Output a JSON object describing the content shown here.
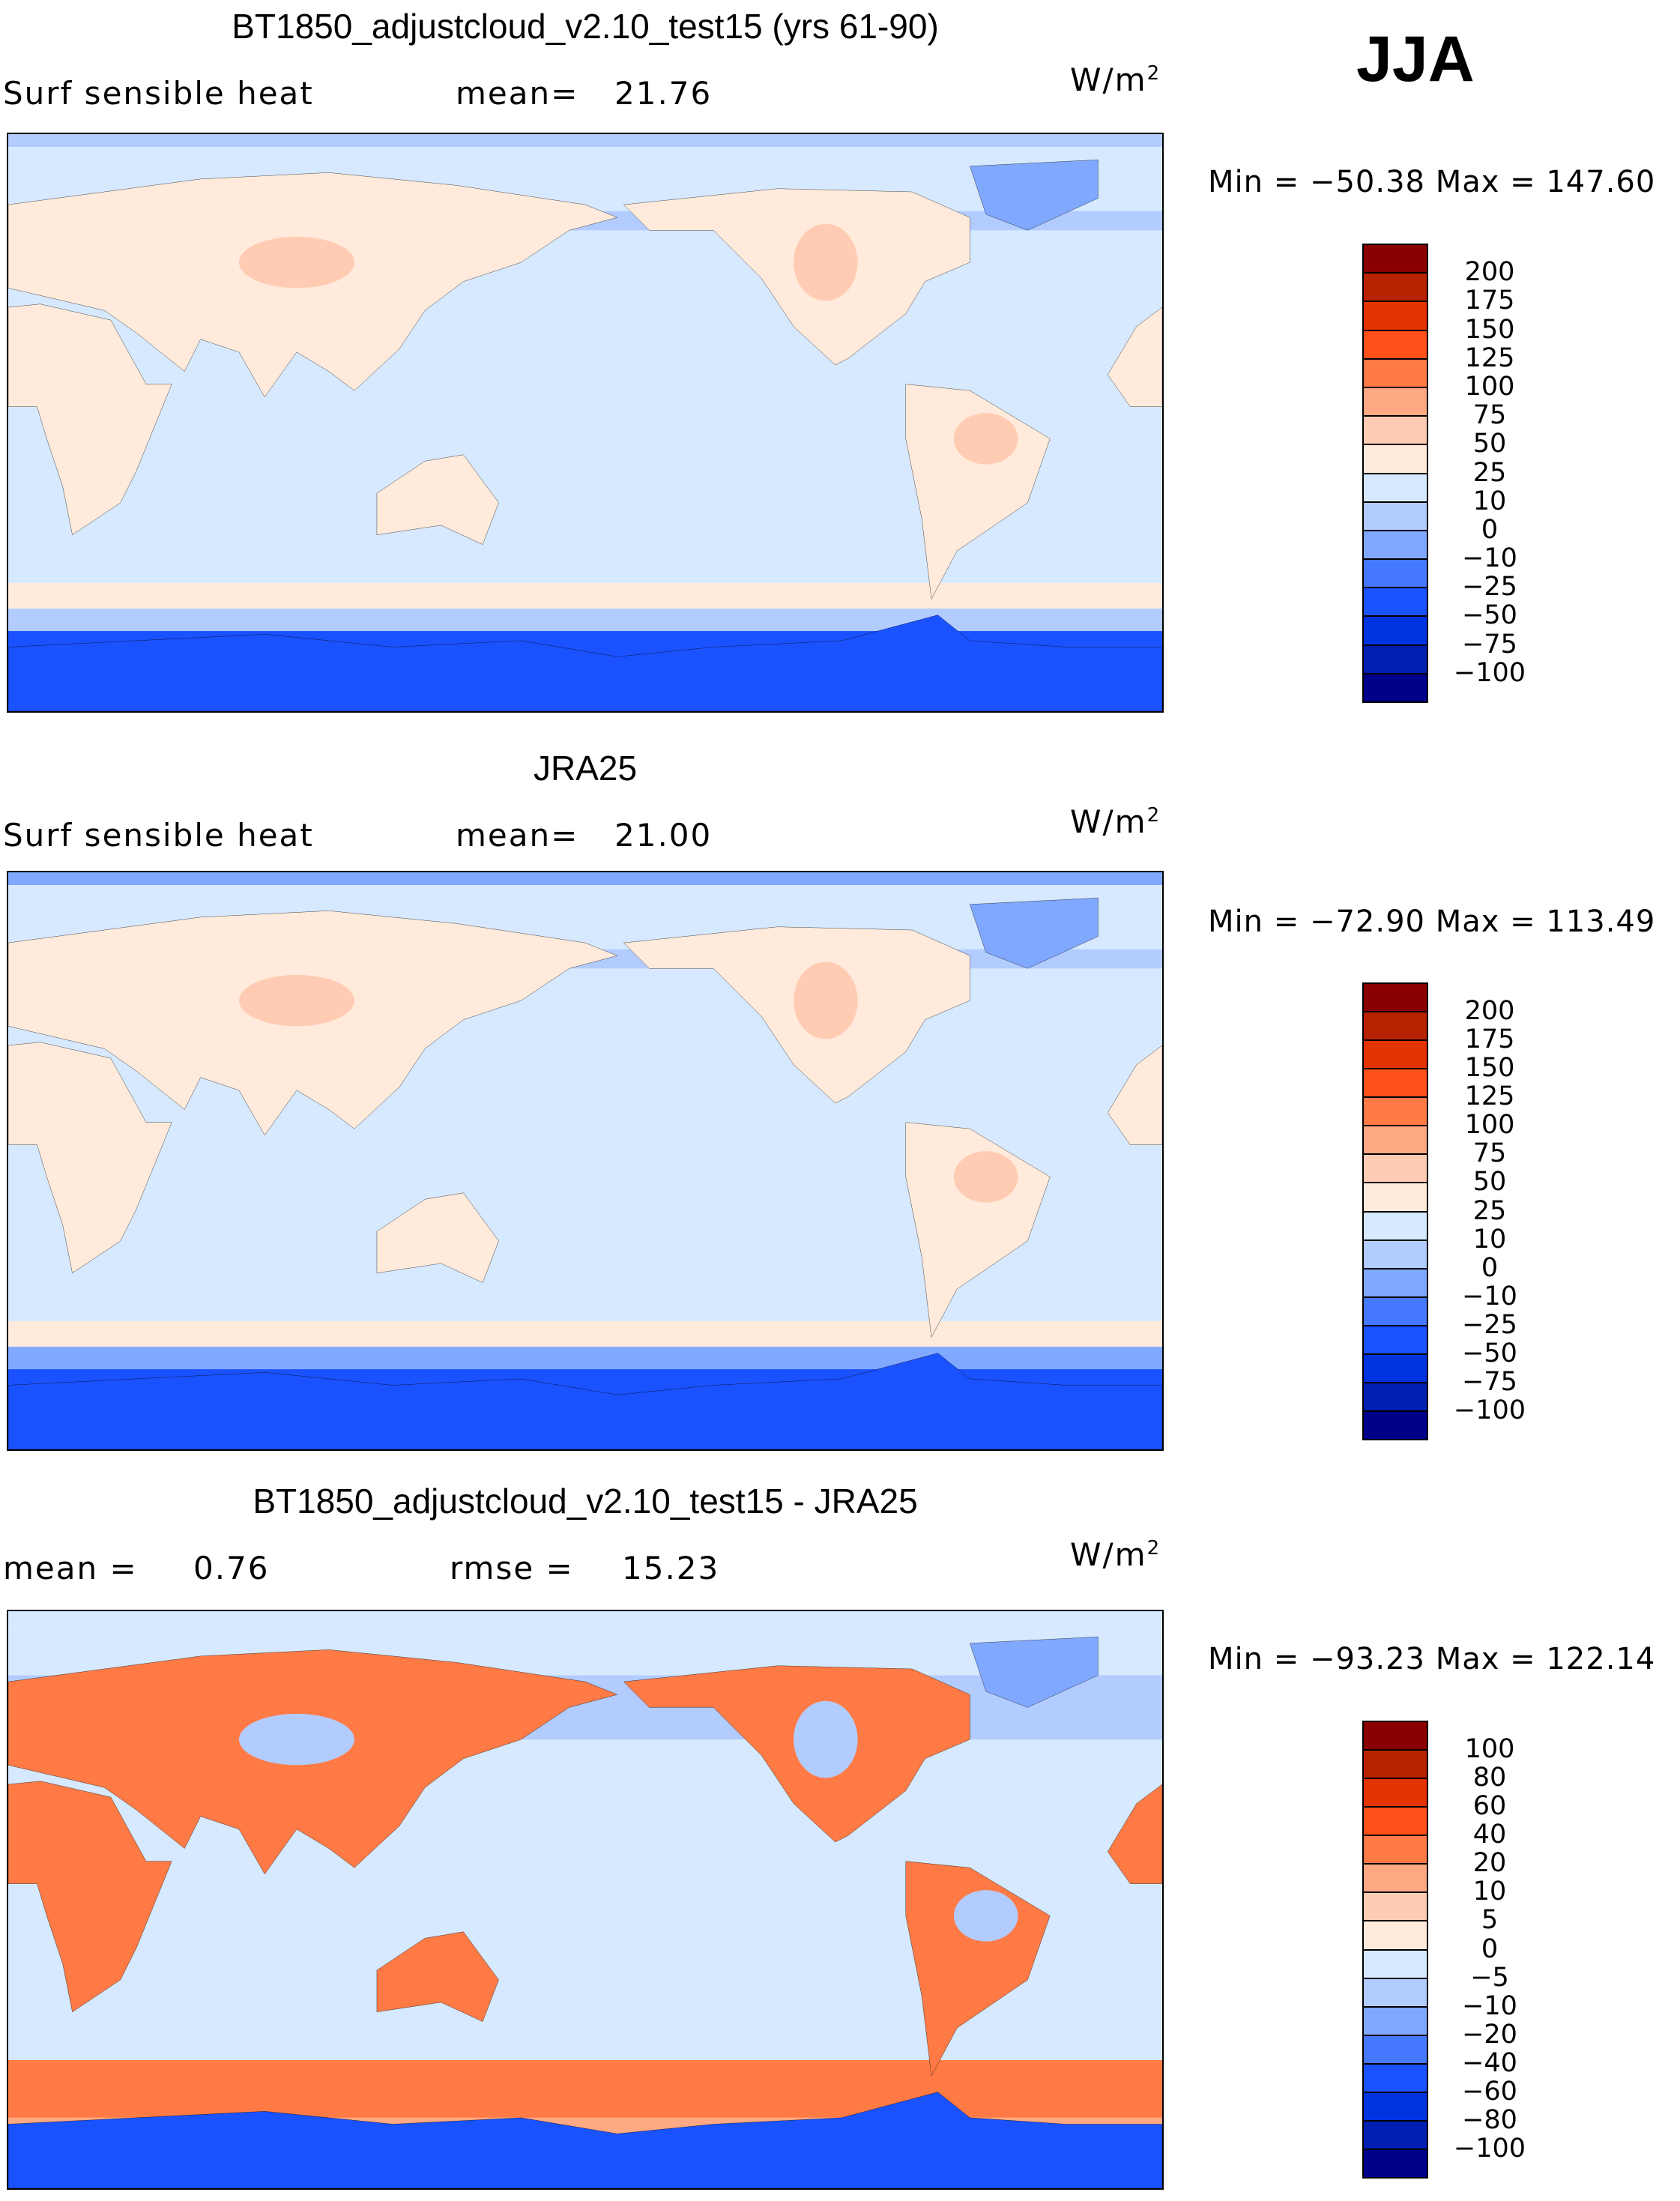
{
  "season": "JJA",
  "chart_data": [
    {
      "type": "heatmap",
      "title": "BT1850_adjustcloud_v2.10_test15 (yrs 61-90)",
      "variable": "Surf sensible heat",
      "mean_label": "mean=",
      "mean": "21.76",
      "units": "W/m",
      "units_exp": "2",
      "min_label": "Min =",
      "min": "−50.38",
      "max_label": "Max =",
      "max": "147.60",
      "levels": [
        "200",
        "175",
        "150",
        "125",
        "100",
        "75",
        "50",
        "25",
        "10",
        "0",
        "−10",
        "−25",
        "−50",
        "−75",
        "−100"
      ]
    },
    {
      "type": "heatmap",
      "title": "JRA25",
      "variable": "Surf sensible heat",
      "mean_label": "mean=",
      "mean": "21.00",
      "units": "W/m",
      "units_exp": "2",
      "min_label": "Min =",
      "min": "−72.90",
      "max_label": "Max =",
      "max": "113.49",
      "levels": [
        "200",
        "175",
        "150",
        "125",
        "100",
        "75",
        "50",
        "25",
        "10",
        "0",
        "−10",
        "−25",
        "−50",
        "−75",
        "−100"
      ]
    },
    {
      "type": "heatmap",
      "title": "BT1850_adjustcloud_v2.10_test15 - JRA25",
      "variable": "mean =",
      "mean": "0.76",
      "rmse_label": "rmse =",
      "rmse": "15.23",
      "units": "W/m",
      "units_exp": "2",
      "min_label": "Min =",
      "min": "−93.23",
      "max_label": "Max =",
      "max": "122.14",
      "levels": [
        "100",
        "80",
        "60",
        "40",
        "20",
        "10",
        "5",
        "0",
        "−5",
        "−10",
        "−20",
        "−40",
        "−60",
        "−80",
        "−100"
      ]
    }
  ],
  "colors": [
    "#880000",
    "#b72200",
    "#e33300",
    "#ff5019",
    "#ff7a45",
    "#ffa984",
    "#ffccb3",
    "#ffeadb",
    "#d6e9ff",
    "#b3ccff",
    "#80a8ff",
    "#4478ff",
    "#1a52ff",
    "#0033e0",
    "#001fb0",
    "#000088"
  ]
}
